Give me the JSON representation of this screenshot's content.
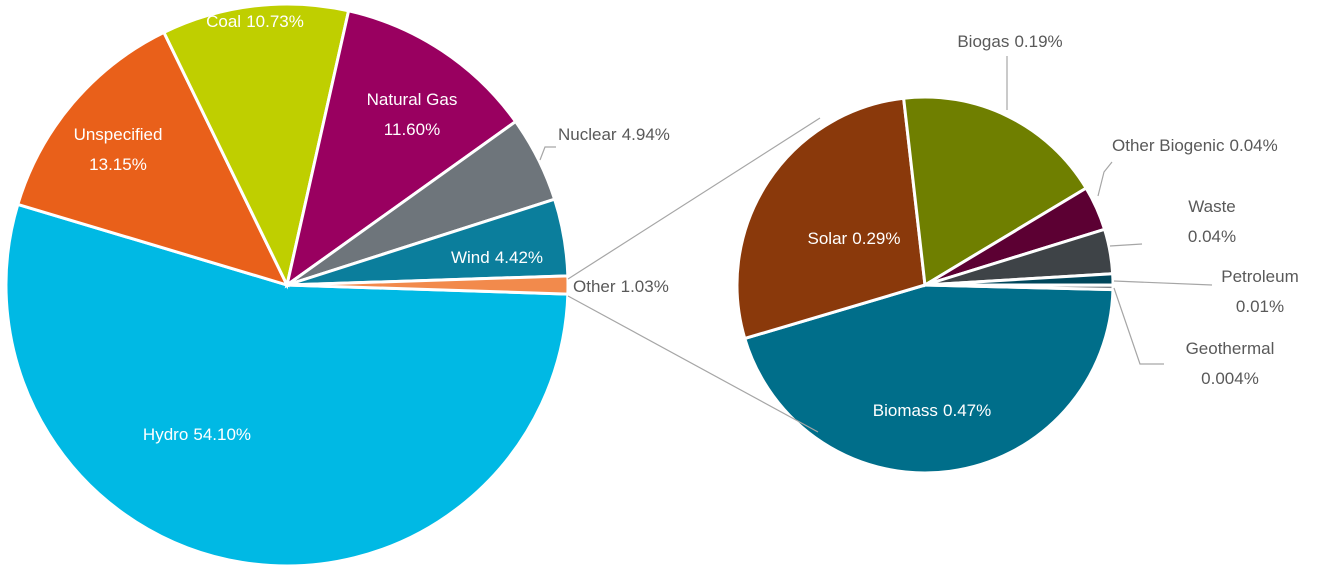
{
  "chart_data": [
    {
      "type": "pie",
      "categories": [
        "Hydro",
        "Unspecified",
        "Coal",
        "Natural Gas",
        "Nuclear",
        "Wind",
        "Other"
      ],
      "values": [
        54.1,
        13.15,
        10.73,
        11.6,
        4.94,
        4.42,
        1.03
      ],
      "value_labels": [
        "54.10%",
        "13.15%",
        "10.73%",
        "11.60%",
        "4.94%",
        "4.42%",
        "1.03%"
      ],
      "colors": [
        "#00b9e4",
        "#e9601a",
        "#bfcf00",
        "#990060",
        "#6e757b",
        "#0b7e9c",
        "#f28a4c"
      ]
    },
    {
      "type": "pie",
      "categories": [
        "Biomass",
        "Solar",
        "Biogas",
        "Other Biogenic",
        "Waste",
        "Petroleum",
        "Geothermal"
      ],
      "values": [
        0.47,
        0.29,
        0.19,
        0.04,
        0.04,
        0.01,
        0.004
      ],
      "value_labels": [
        "0.47%",
        "0.29%",
        "0.19%",
        "0.04%",
        "0.04%",
        "0.01%",
        "0.004%"
      ],
      "colors": [
        "#006e8a",
        "#8a390b",
        "#6f7f00",
        "#5c0033",
        "#3e4347",
        "#00475c",
        "#80868b"
      ]
    }
  ]
}
